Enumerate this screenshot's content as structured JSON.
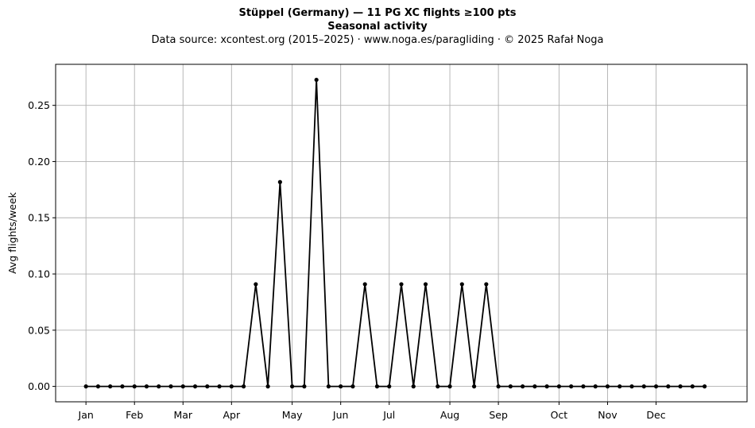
{
  "title": "Stüppel (Germany)  —  11 PG XC flights ≥100 pts",
  "subtitle": "Seasonal activity",
  "source_line": "Data source: xcontest.org (2015–2025)  ·  www.noga.es/paragliding  ·  © 2025 Rafał Noga",
  "chart_data": {
    "type": "line",
    "title": "Stüppel (Germany)  —  11 PG XC flights ≥100 pts",
    "subtitle": "Seasonal activity",
    "xlabel": "",
    "ylabel": "Avg flights/week",
    "ylim": [
      -0.0137,
      0.2865
    ],
    "xlim": [
      -2.5,
      54.5
    ],
    "grid": true,
    "line_color": "#000000",
    "grid_color": "#b0b0b0",
    "y_ticks": [
      {
        "value": 0.0,
        "label": "0.00"
      },
      {
        "value": 0.05,
        "label": "0.05"
      },
      {
        "value": 0.1,
        "label": "0.10"
      },
      {
        "value": 0.15,
        "label": "0.15"
      },
      {
        "value": 0.2,
        "label": "0.20"
      },
      {
        "value": 0.25,
        "label": "0.25"
      }
    ],
    "x_ticks": [
      {
        "week": 0,
        "label": "Jan"
      },
      {
        "week": 4,
        "label": "Feb"
      },
      {
        "week": 8,
        "label": "Mar"
      },
      {
        "week": 12,
        "label": "Apr"
      },
      {
        "week": 17,
        "label": "May"
      },
      {
        "week": 21,
        "label": "Jun"
      },
      {
        "week": 25,
        "label": "Jul"
      },
      {
        "week": 30,
        "label": "Aug"
      },
      {
        "week": 34,
        "label": "Sep"
      },
      {
        "week": 39,
        "label": "Oct"
      },
      {
        "week": 43,
        "label": "Nov"
      },
      {
        "week": 47,
        "label": "Dec"
      }
    ],
    "series": [
      {
        "x": [
          0,
          1,
          2,
          3,
          4,
          5,
          6,
          7,
          8,
          9,
          10,
          11,
          12,
          13,
          14,
          15,
          16,
          17,
          18,
          19,
          20,
          21,
          22,
          23,
          24,
          25,
          26,
          27,
          28,
          29,
          30,
          31,
          32,
          33,
          34,
          35,
          36,
          37,
          38,
          39,
          40,
          41,
          42,
          43,
          44,
          45,
          46,
          47,
          48,
          49,
          50,
          51
        ],
        "values": [
          0,
          0,
          0,
          0,
          0,
          0,
          0,
          0,
          0,
          0,
          0,
          0,
          0,
          0,
          0.0909,
          0,
          0.1818,
          0,
          0,
          0.2727,
          0,
          0,
          0,
          0.0909,
          0,
          0,
          0.0909,
          0,
          0.0909,
          0,
          0,
          0.0909,
          0,
          0.0909,
          0,
          0,
          0,
          0,
          0,
          0,
          0,
          0,
          0,
          0,
          0,
          0,
          0,
          0,
          0,
          0,
          0,
          0
        ]
      }
    ]
  }
}
